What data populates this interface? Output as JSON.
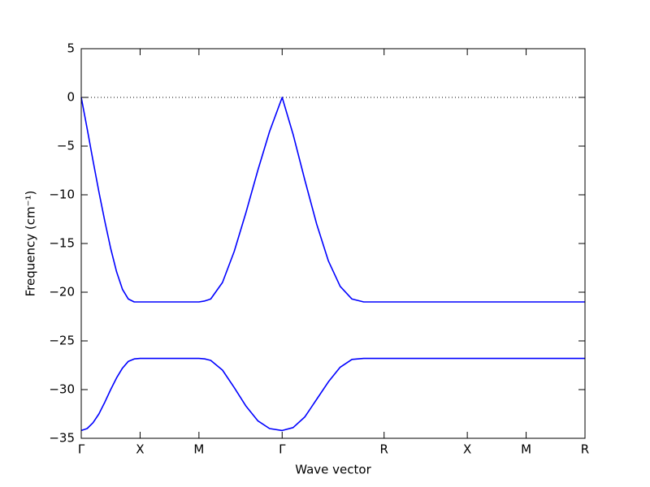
{
  "chart_data": {
    "type": "line",
    "x_label": "Wave vector",
    "y_label": "Frequency (cm⁻¹)",
    "x": [
      0,
      0.05,
      0.1,
      0.15,
      0.2,
      0.25,
      0.3,
      0.35,
      0.4,
      0.45,
      0.5,
      0.75,
      1.0,
      1.05,
      1.1,
      1.2,
      1.3,
      1.4,
      1.5,
      1.6,
      1.707,
      1.8,
      1.9,
      2.0,
      2.1,
      2.2,
      2.3,
      2.4,
      2.573,
      3.28,
      3.78,
      4.28
    ],
    "series": [
      {
        "color": "#0000ff",
        "values": [
          0,
          -3.2,
          -6.5,
          -9.7,
          -12.7,
          -15.5,
          -17.9,
          -19.7,
          -20.7,
          -21.0,
          -21.0,
          -21.0,
          -21.0,
          -20.9,
          -20.7,
          -19.0,
          -15.8,
          -11.8,
          -7.5,
          -3.5,
          0,
          -3.8,
          -8.5,
          -13.0,
          -16.8,
          -19.4,
          -20.7,
          -21.0,
          -21.0,
          -21.0,
          -21.0,
          -21.0
        ]
      },
      {
        "color": "#0000ff",
        "values": [
          -34.2,
          -34.0,
          -33.4,
          -32.5,
          -31.3,
          -30.0,
          -28.8,
          -27.8,
          -27.1,
          -26.85,
          -26.8,
          -26.8,
          -26.8,
          -26.85,
          -27.0,
          -28.0,
          -29.8,
          -31.7,
          -33.2,
          -34.0,
          -34.2,
          -33.9,
          -32.8,
          -31.0,
          -29.2,
          -27.7,
          -26.9,
          -26.8,
          -26.8,
          -26.8,
          -26.8,
          -26.8
        ]
      }
    ],
    "xlim": [
      0,
      4.28
    ],
    "xticks": [
      {
        "value": 0,
        "label": "Γ"
      },
      {
        "value": 0.5,
        "label": "X"
      },
      {
        "value": 1.0,
        "label": "M"
      },
      {
        "value": 1.707,
        "label": "Γ"
      },
      {
        "value": 2.573,
        "label": "R"
      },
      {
        "value": 3.28,
        "label": "X"
      },
      {
        "value": 3.78,
        "label": "M"
      },
      {
        "value": 4.28,
        "label": "R"
      }
    ],
    "ylim": [
      -35,
      5
    ],
    "yticks": [
      {
        "value": -35,
        "label": "−35"
      },
      {
        "value": -30,
        "label": "−30"
      },
      {
        "value": -25,
        "label": "−25"
      },
      {
        "value": -20,
        "label": "−20"
      },
      {
        "value": -15,
        "label": "−15"
      },
      {
        "value": -10,
        "label": "−10"
      },
      {
        "value": -5,
        "label": "−5"
      },
      0,
      5
    ],
    "hline": 0,
    "grid": false
  }
}
